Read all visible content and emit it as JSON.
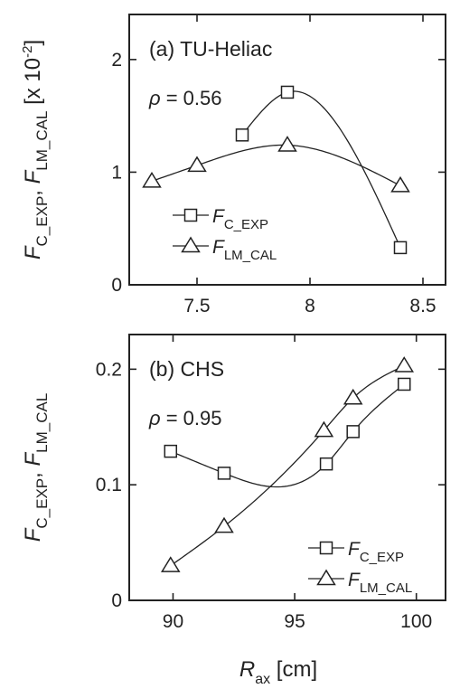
{
  "chart_data": [
    {
      "type": "line",
      "panel": "top",
      "panel_label": "(a) TU-Heliac",
      "annotation": {
        "symbol": "ρ",
        "text": " = 0.56"
      },
      "ylabel": {
        "main": "F",
        "sub1": "C_EXP",
        "sep": ", ",
        "main2": "F",
        "sub2": "LM_CAL",
        "suffix": " [x 10",
        "exp": "-2",
        "close": "]"
      },
      "xlim": [
        7.2,
        8.6
      ],
      "ylim": [
        0,
        2.4
      ],
      "xticks": [
        7.5,
        8,
        8.5
      ],
      "xtick_labels": [
        "7.5",
        "8",
        "8.5"
      ],
      "yticks": [
        0,
        1,
        2
      ],
      "ytick_labels": [
        "0",
        "1",
        "2"
      ],
      "legend_position": "lower-left",
      "series": [
        {
          "name": "F_C_EXP",
          "label_main": "F",
          "label_sub": "C_EXP",
          "marker": "square",
          "x": [
            7.7,
            7.9,
            8.4
          ],
          "y": [
            1.33,
            1.71,
            0.33
          ]
        },
        {
          "name": "F_LM_CAL",
          "label_main": "F",
          "label_sub": "LM_CAL",
          "marker": "triangle",
          "x": [
            7.3,
            7.5,
            7.9,
            8.4
          ],
          "y": [
            0.92,
            1.06,
            1.24,
            0.88
          ]
        }
      ]
    },
    {
      "type": "line",
      "panel": "bottom",
      "panel_label": "(b) CHS",
      "annotation": {
        "symbol": "ρ",
        "text": " = 0.95"
      },
      "ylabel": {
        "main": "F",
        "sub1": "C_EXP",
        "sep": ", ",
        "main2": "F",
        "sub2": "LM_CAL"
      },
      "xlabel": {
        "main": "R",
        "sub": "ax",
        "suffix": " [cm]"
      },
      "xlim": [
        88.2,
        101.2
      ],
      "ylim": [
        0,
        0.23
      ],
      "xticks": [
        90,
        95,
        100
      ],
      "xtick_labels": [
        "90",
        "95",
        "100"
      ],
      "yticks": [
        0,
        0.1,
        0.2
      ],
      "ytick_labels": [
        "0",
        "0.1",
        "0.2"
      ],
      "legend_position": "lower-right",
      "series": [
        {
          "name": "F_C_EXP",
          "label_main": "F",
          "label_sub": "C_EXP",
          "marker": "square",
          "x": [
            89.9,
            92.1,
            96.3,
            97.4,
            99.5
          ],
          "y": [
            0.129,
            0.11,
            0.118,
            0.146,
            0.187
          ]
        },
        {
          "name": "F_LM_CAL",
          "label_main": "F",
          "label_sub": "LM_CAL",
          "marker": "triangle",
          "x": [
            89.9,
            92.1,
            96.2,
            97.4,
            99.5
          ],
          "y": [
            0.03,
            0.064,
            0.147,
            0.175,
            0.203
          ]
        }
      ]
    }
  ]
}
